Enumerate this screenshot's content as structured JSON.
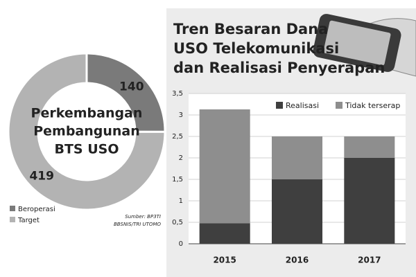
{
  "chart_data": [
    {
      "type": "pie",
      "title_lines": [
        "Perkembangan",
        "Pembangunan",
        "BTS USO"
      ],
      "categories": [
        "Beroperasi",
        "Target"
      ],
      "values": [
        140,
        419
      ],
      "colors": [
        "#7a7a7a",
        "#b3b3b3"
      ],
      "source_lines": [
        "Sumber: BP3TI",
        "BBSNIS/TRI UTOMO"
      ]
    },
    {
      "type": "bar",
      "stacked": true,
      "title_lines": [
        "Tren Besaran Dana",
        "USO Telekomunikasi",
        "dan Realisasi Penyerapan"
      ],
      "categories": [
        "2015",
        "2016",
        "2017"
      ],
      "series": [
        {
          "name": "Realisasi",
          "color": "#3f3f3f",
          "values": [
            0.48,
            1.5,
            2.0
          ]
        },
        {
          "name": "Tidak terserap",
          "color": "#8e8e8e",
          "values": [
            2.65,
            1.0,
            0.5
          ]
        }
      ],
      "ylim": [
        0,
        3.5
      ],
      "yticks": [
        0,
        {
          "value": 0.5,
          "label": "0,5"
        },
        1,
        {
          "value": 1.5,
          "label": "1,5"
        },
        2,
        {
          "value": 2.5,
          "label": "2,5"
        },
        3,
        {
          "value": 3.5,
          "label": "3,5"
        }
      ],
      "grid": true
    }
  ]
}
